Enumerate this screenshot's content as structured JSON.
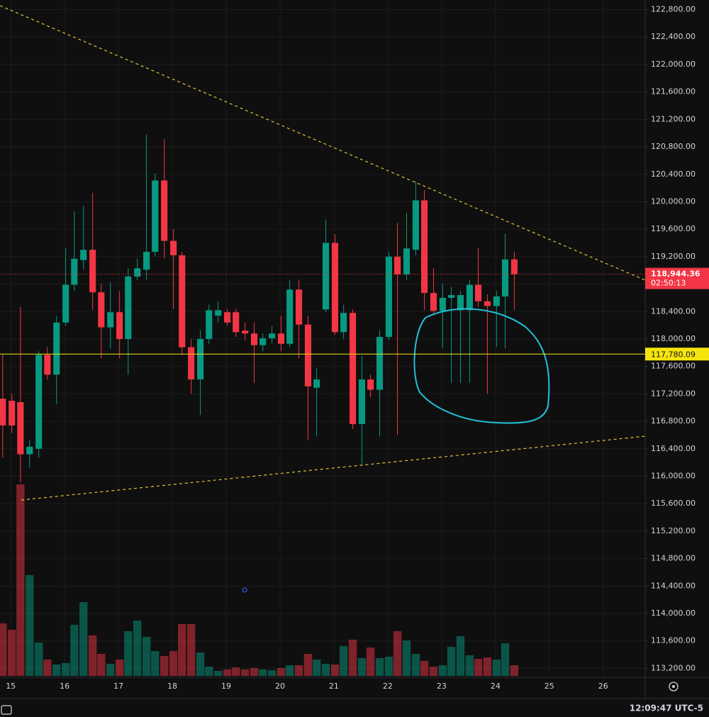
{
  "chart_data": {
    "type": "candlestick",
    "x": [
      14.85,
      15.02,
      15.18,
      15.35,
      15.52,
      15.68,
      15.85,
      16.02,
      16.18,
      16.35,
      16.52,
      16.68,
      16.85,
      17.02,
      17.18,
      17.35,
      17.52,
      17.68,
      17.85,
      18.02,
      18.18,
      18.35,
      18.52,
      18.68,
      18.85,
      19.02,
      19.18,
      19.35,
      19.52,
      19.68,
      19.85,
      20.02,
      20.18,
      20.35,
      20.52,
      20.68,
      20.85,
      21.02,
      21.18,
      21.35,
      21.52,
      21.68,
      21.85,
      22.02,
      22.18,
      22.35,
      22.52,
      22.68,
      22.85,
      23.02,
      23.18,
      23.35,
      23.52,
      23.68,
      23.85,
      24.02,
      24.18,
      24.35
    ],
    "open": [
      117130,
      117100,
      117080,
      116320,
      116400,
      117770,
      117480,
      118240,
      118790,
      119150,
      119300,
      118680,
      118170,
      118390,
      118000,
      118910,
      119010,
      119270,
      120310,
      119430,
      119220,
      117880,
      117410,
      118000,
      118340,
      118390,
      118390,
      118120,
      118080,
      117910,
      118010,
      118080,
      117930,
      118720,
      118210,
      117290,
      118430,
      119400,
      118100,
      118380,
      116760,
      117410,
      117260,
      118030,
      119200,
      118940,
      119300,
      120020,
      118670,
      118410,
      118600,
      118420,
      118420,
      118790,
      118550,
      118480,
      118620,
      119160
    ],
    "high": [
      117770,
      117200,
      118470,
      116530,
      117820,
      117880,
      118340,
      119320,
      119860,
      119940,
      120130,
      118810,
      118830,
      118700,
      119030,
      119170,
      120980,
      120410,
      120910,
      119600,
      119270,
      118000,
      118130,
      118500,
      118550,
      118440,
      118440,
      118240,
      118240,
      118080,
      118190,
      118340,
      118860,
      118860,
      118340,
      117570,
      119740,
      119530,
      118500,
      118430,
      117750,
      117480,
      118130,
      119270,
      119690,
      119840,
      120300,
      120170,
      119030,
      118810,
      118760,
      118700,
      118860,
      119320,
      118650,
      118700,
      119530,
      119270
    ],
    "low": [
      116270,
      116630,
      115910,
      116120,
      116270,
      117410,
      117050,
      118190,
      118700,
      119010,
      118420,
      117720,
      117860,
      117720,
      117480,
      118860,
      118860,
      119200,
      119170,
      118440,
      117770,
      117200,
      116890,
      117930,
      118240,
      118190,
      118030,
      117980,
      117360,
      117820,
      117930,
      117820,
      117880,
      117720,
      116530,
      116580,
      118390,
      118060,
      118000,
      116690,
      116170,
      117150,
      116580,
      117980,
      116600,
      118860,
      119220,
      118420,
      118370,
      117860,
      117360,
      117360,
      117360,
      118470,
      117200,
      117880,
      117860,
      118420
    ],
    "close": [
      116740,
      116740,
      116320,
      116430,
      117770,
      117480,
      118240,
      118790,
      119170,
      119300,
      118680,
      118170,
      118390,
      118000,
      118910,
      119030,
      119270,
      120310,
      119430,
      119220,
      117880,
      117410,
      118000,
      118420,
      118420,
      118240,
      118100,
      118080,
      117910,
      118010,
      118080,
      117930,
      118720,
      118210,
      117310,
      117410,
      119400,
      118100,
      118380,
      116760,
      117410,
      117260,
      118030,
      119200,
      118940,
      119320,
      120020,
      118670,
      118410,
      118600,
      118640,
      118640,
      118790,
      118550,
      118480,
      118620,
      119160,
      118944.36
    ],
    "volume": [
      74,
      65,
      270,
      142,
      47,
      23,
      16,
      18,
      72,
      104,
      57,
      31,
      17,
      23,
      63,
      78,
      55,
      35,
      28,
      35,
      73,
      73,
      33,
      13,
      7,
      9,
      12,
      9,
      11,
      9,
      8,
      11,
      15,
      15,
      31,
      23,
      17,
      16,
      42,
      51,
      25,
      40,
      25,
      27,
      63,
      50,
      31,
      21,
      13,
      15,
      41,
      56,
      29,
      24,
      26,
      23,
      46,
      15
    ],
    "up_color": "#089981",
    "down_color": "#f23645",
    "xlim": [
      14.8,
      26.78
    ],
    "xticks": [
      15,
      16,
      17,
      18,
      19,
      20,
      21,
      22,
      23,
      24,
      25,
      26
    ],
    "ylim": [
      113070,
      122940
    ],
    "yticks": [
      {
        "value": 113200,
        "label": "113,200.00"
      },
      {
        "value": 113600,
        "label": "113,600.00"
      },
      {
        "value": 114000,
        "label": "114,000.00"
      },
      {
        "value": 114400,
        "label": "114,400.00"
      },
      {
        "value": 114800,
        "label": "114,800.00"
      },
      {
        "value": 115200,
        "label": "115,200.00"
      },
      {
        "value": 115600,
        "label": "115,600.00"
      },
      {
        "value": 116000,
        "label": "116,000.00"
      },
      {
        "value": 116400,
        "label": "116,400.00"
      },
      {
        "value": 116800,
        "label": "116,800.00"
      },
      {
        "value": 117200,
        "label": "117,200.00"
      },
      {
        "value": 117600,
        "label": "117,600.00"
      },
      {
        "value": 118000,
        "label": "118,000.00"
      },
      {
        "value": 118400,
        "label": "118,400.00"
      },
      {
        "value": 118800,
        "label": "118,800.00"
      },
      {
        "value": 119200,
        "label": "119,200.00"
      },
      {
        "value": 119600,
        "label": "119,600.00"
      },
      {
        "value": 120000,
        "label": "120,000.00"
      },
      {
        "value": 120400,
        "label": "120,400.00"
      },
      {
        "value": 120800,
        "label": "120,800.00"
      },
      {
        "value": 121200,
        "label": "121,200.00"
      },
      {
        "value": 121600,
        "label": "121,600.00"
      },
      {
        "value": 122000,
        "label": "122,000.00"
      },
      {
        "value": 122400,
        "label": "122,400.00"
      },
      {
        "value": 122800,
        "label": "122,800.00"
      }
    ],
    "grid": true,
    "price_line": {
      "value": 117780.09,
      "label": "117,780.09",
      "color": "#f5e50d"
    },
    "last_price": {
      "value": 118944.36,
      "label": "118,944.36",
      "countdown": "02:50:13"
    }
  },
  "status_bar": {
    "clock": "12:09:47 UTC-5"
  }
}
